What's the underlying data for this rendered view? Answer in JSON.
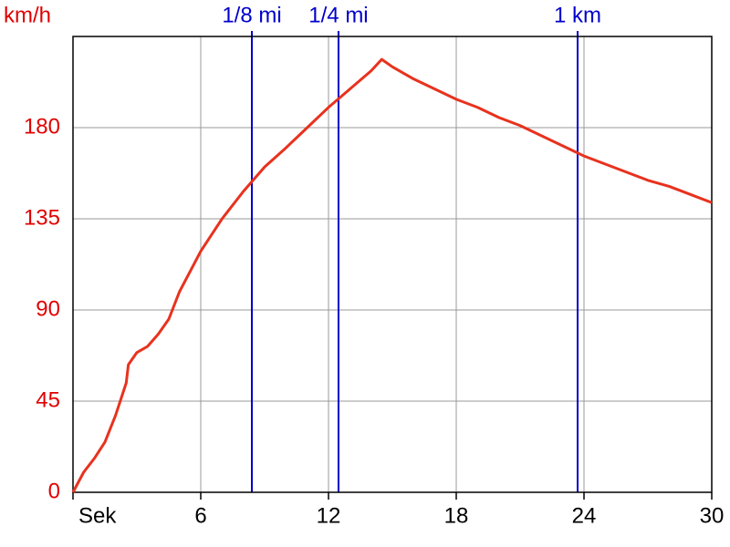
{
  "chart_data": {
    "type": "line",
    "y_label": "km/h",
    "x": [
      0,
      0.5,
      1,
      1.5,
      2,
      2.5,
      2.6,
      3,
      3.5,
      4,
      4.5,
      5,
      5.5,
      6,
      7,
      8,
      9,
      10,
      11,
      12,
      13,
      14,
      14.5,
      15,
      16,
      17,
      18,
      19,
      20,
      21,
      22,
      23,
      24,
      25,
      26,
      27,
      28,
      29,
      30
    ],
    "series": [
      {
        "color": "#e8321e",
        "values": [
          0,
          9.9,
          16.7,
          24.8,
          38,
          54,
          63,
          69,
          72,
          78,
          85.5,
          99,
          109,
          119,
          135,
          148.5,
          160.6,
          170,
          180,
          190,
          199,
          208,
          213.7,
          210,
          204,
          199,
          194,
          190,
          185,
          181,
          176,
          171,
          166,
          162,
          158,
          154,
          151,
          147,
          143
        ]
      }
    ],
    "xlim": [
      0,
      30
    ],
    "ylim": [
      0,
      225
    ],
    "xticks": [
      {
        "value": 0,
        "label": "Sek"
      },
      6,
      12,
      18,
      24,
      30
    ],
    "yticks": [
      0,
      45,
      90,
      135,
      180
    ],
    "grid": true,
    "markers": [
      {
        "label": "1/8 mi",
        "x": 8.4
      },
      {
        "label": "1/4 mi",
        "x": 12.47
      },
      {
        "label": "1 km",
        "x": 23.7
      }
    ],
    "marker_color": "#0000cc",
    "tick_color": "#e00000"
  }
}
